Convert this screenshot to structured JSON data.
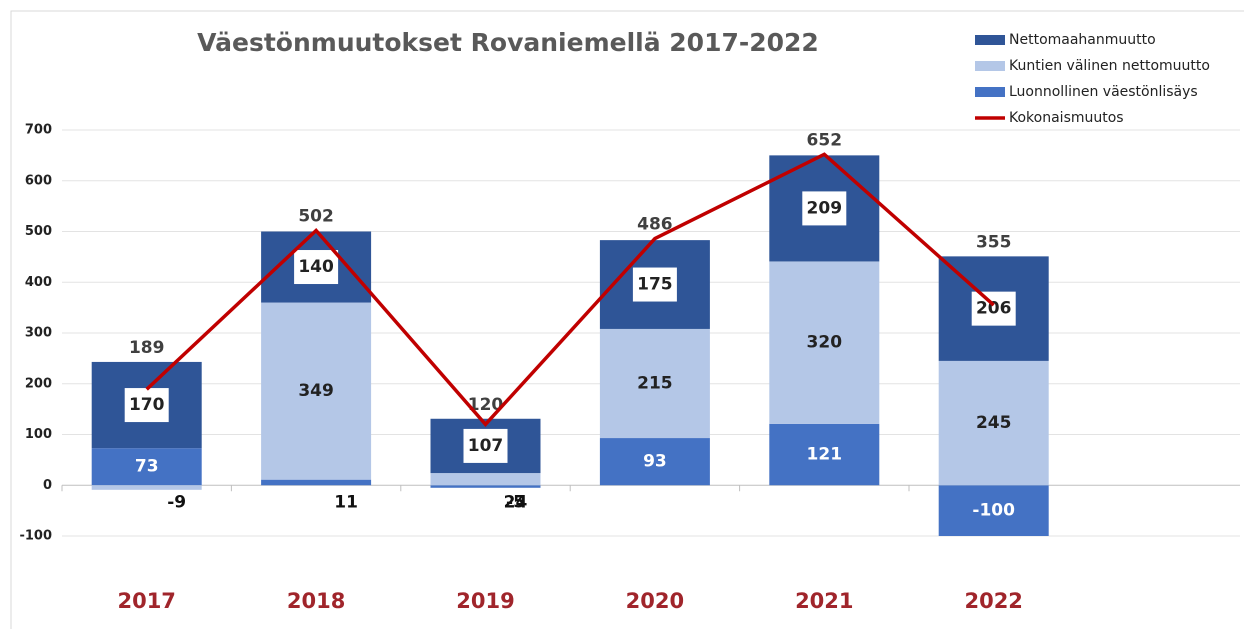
{
  "chart_data": {
    "type": "bar",
    "title": "Väestönmuutokset Rovaniemellä 2017-2022",
    "categories": [
      "2017",
      "2018",
      "2019",
      "2020",
      "2021",
      "2022"
    ],
    "series": [
      {
        "name": "Luonnollinen väestönlisäys",
        "color": "#4472c4",
        "values": [
          73,
          11,
          -5,
          93,
          121,
          -100
        ]
      },
      {
        "name": "Kuntien välinen nettomuutto",
        "color": "#b4c7e7",
        "values": [
          -9,
          349,
          24,
          215,
          320,
          245
        ]
      },
      {
        "name": "Nettomaahanmuutto",
        "color": "#2f5597",
        "values": [
          170,
          140,
          107,
          175,
          209,
          206
        ]
      },
      {
        "name": "Kokonaismuutos",
        "color": "#c00000",
        "type": "line",
        "values": [
          189,
          502,
          120,
          486,
          652,
          355
        ]
      }
    ],
    "ylim": [
      -100,
      700
    ],
    "yticks": [
      -100,
      0,
      100,
      200,
      300,
      400,
      500,
      600,
      700
    ],
    "grid": true,
    "legend": "top-right"
  }
}
